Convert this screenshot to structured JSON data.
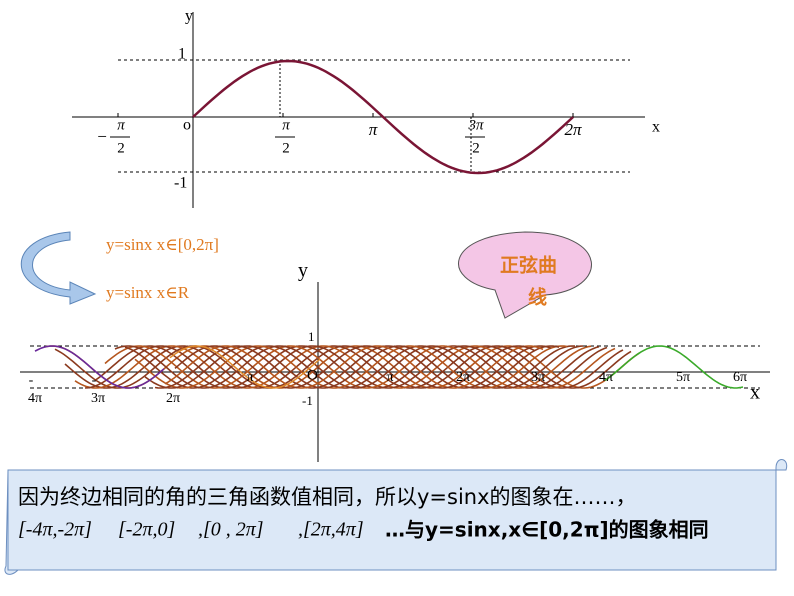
{
  "top_graph": {
    "y_axis": "y",
    "x_axis": "x",
    "origin": "o",
    "y_max": "1",
    "y_min": "-1",
    "x_ticks": [
      {
        "sign": "−",
        "numerator": "π",
        "denominator": "2"
      },
      {
        "numerator": "π",
        "denominator": "2"
      },
      {
        "label": "π"
      },
      {
        "numerator": "3π",
        "denominator": "2"
      },
      {
        "label": "2π"
      }
    ]
  },
  "labels": {
    "domain_interval": "y=sinx   x∈[0,2π]",
    "domain_real": "y=sinx   x∈R"
  },
  "bubble": {
    "line1": "正弦曲",
    "line2": "线"
  },
  "bottom_graph": {
    "y_axis": "y",
    "x_axis": "x",
    "origin": "O",
    "y_max": "1",
    "y_min": "-1",
    "x_ticks": [
      {
        "sign": "-",
        "label": "4π"
      },
      {
        "sign": "-",
        "label": "3π"
      },
      {
        "label": "2π"
      },
      {
        "label": "π"
      },
      {
        "label": "π"
      },
      {
        "label": "2π"
      },
      {
        "label": "3π"
      },
      {
        "label": "4π"
      },
      {
        "label": "5π"
      },
      {
        "label": "6π"
      }
    ]
  },
  "scroll": {
    "line1": "因为终边相同的角的三角函数值相同，所以y=sinx的图象在……，",
    "intervals": [
      "[-4π,-2π]",
      "[-2π,0]",
      ",[0 , 2π]",
      ",[2π,4π]"
    ],
    "line2_tail": "…与y=sinx,x∈[0,2π]的图象相同"
  }
}
